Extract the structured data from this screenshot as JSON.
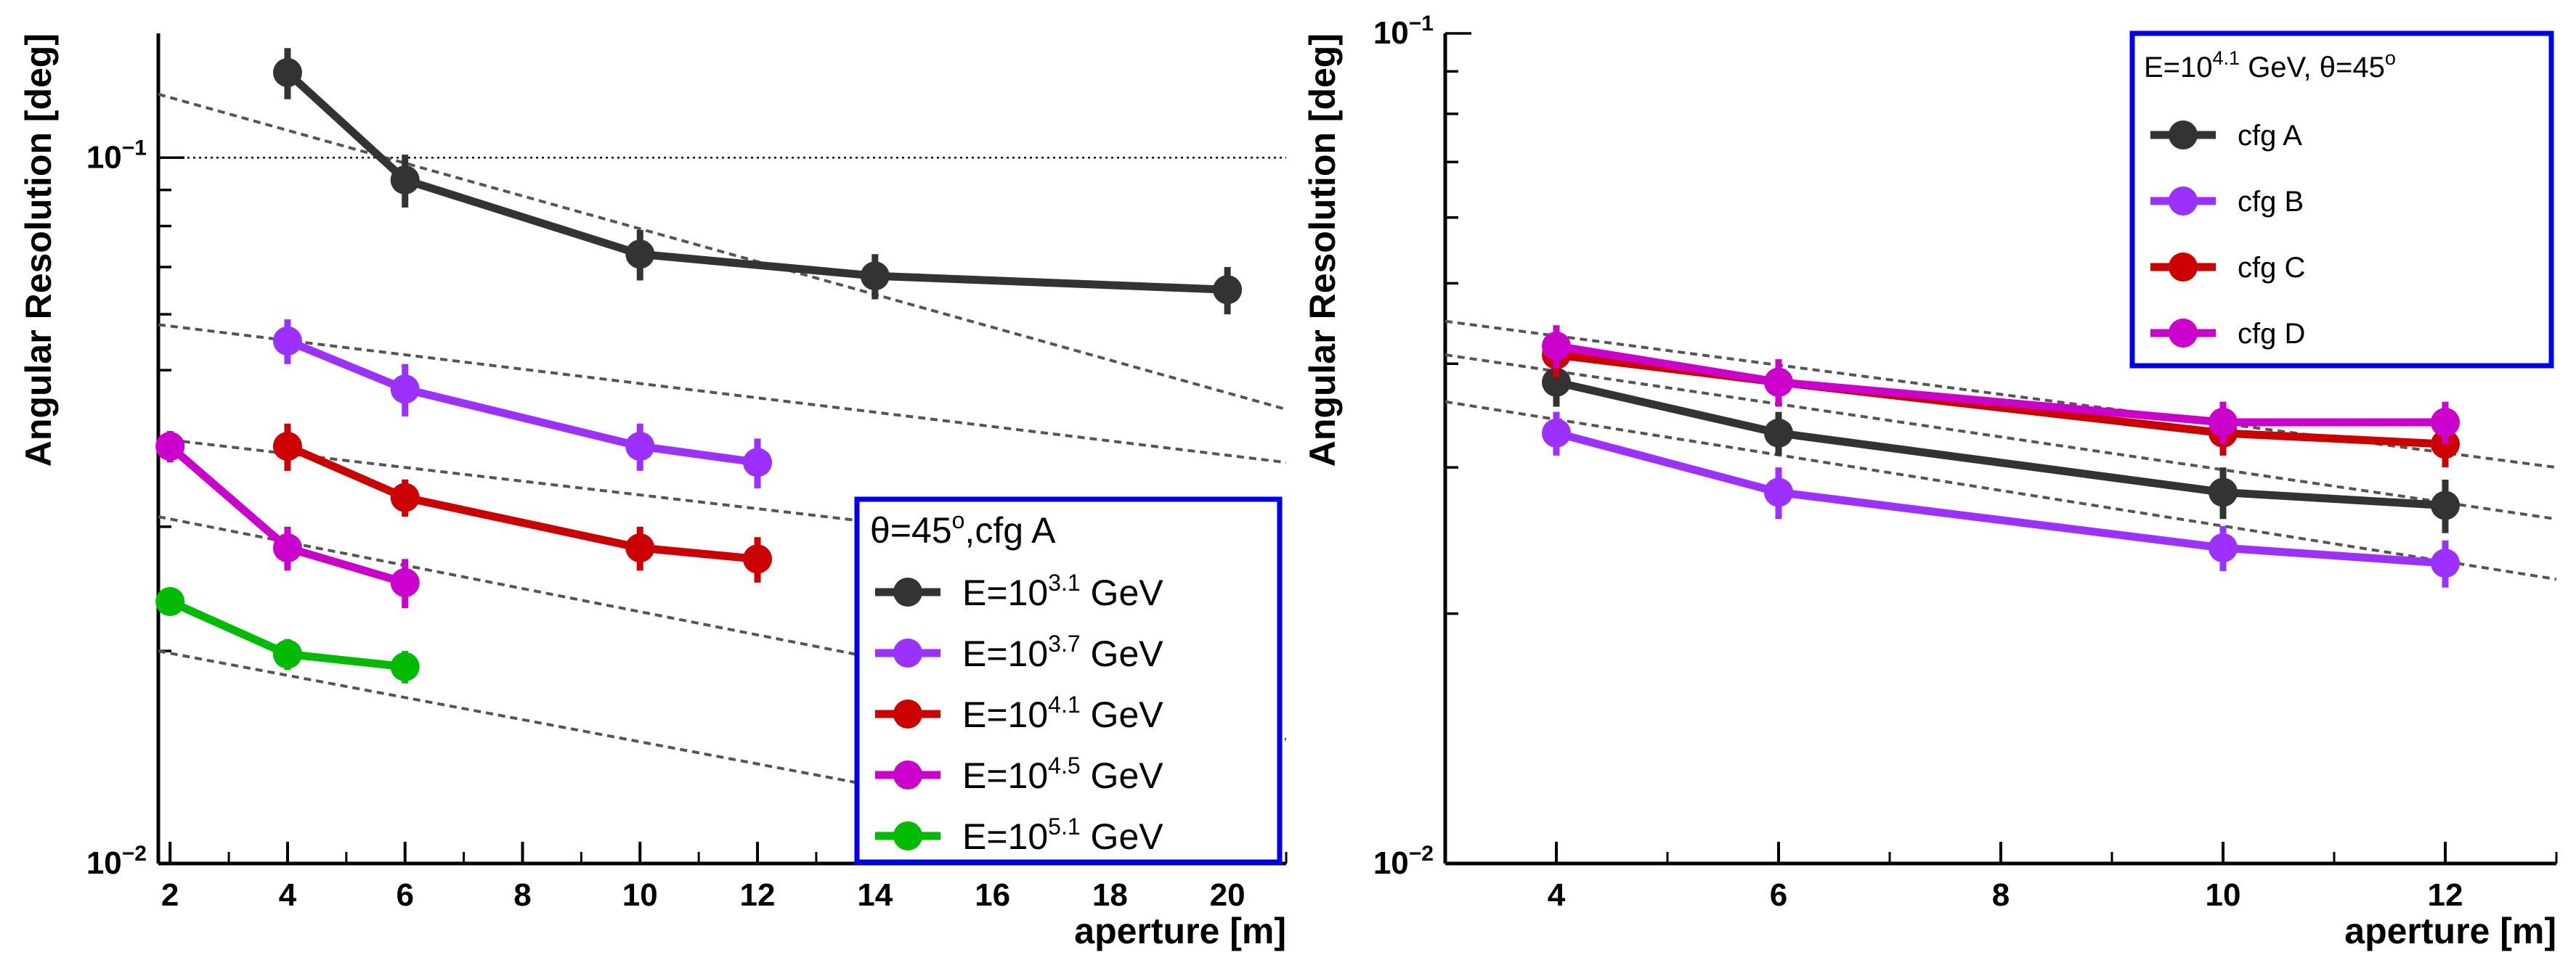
{
  "chart_data": [
    {
      "type": "line",
      "xlabel": "aperture [m]",
      "ylabel": "Angular Resolution [deg]",
      "xlim": [
        1.8,
        21.0
      ],
      "ylim": [
        0.01,
        0.15
      ],
      "yscale": "log",
      "x_ticks": [
        "2",
        "4",
        "6",
        "8",
        "10",
        "12",
        "14",
        "16",
        "18",
        "20"
      ],
      "y_tick_labels": [
        {
          "value": 0.1,
          "base": "10",
          "exp": "−1"
        },
        {
          "value": 0.01,
          "base": "10",
          "exp": "−2"
        }
      ],
      "reference_line": 0.1,
      "legend": {
        "position": "bottom-right",
        "header_prefix": "θ=45",
        "header_sup": "o",
        "header_suffix": ",cfg A"
      },
      "series": [
        {
          "legend_prefix": "E=10",
          "legend_sup": "3.1",
          "legend_suffix": " GeV",
          "color": "#333333",
          "x": [
            4,
            6,
            10,
            14,
            20
          ],
          "y": [
            0.132,
            0.093,
            0.073,
            0.068,
            0.065
          ],
          "err": [
            0.011,
            0.008,
            0.006,
            0.005,
            0.005
          ],
          "fit": [
            0.123,
            0.044
          ]
        },
        {
          "legend_prefix": "E=10",
          "legend_sup": "3.7",
          "legend_suffix": " GeV",
          "color": "#9b30ff",
          "x": [
            4,
            6,
            10,
            12
          ],
          "y": [
            0.055,
            0.047,
            0.039,
            0.037
          ],
          "err": [
            0.004,
            0.004,
            0.003,
            0.003
          ],
          "fit": [
            0.058,
            0.037
          ]
        },
        {
          "legend_prefix": "E=10",
          "legend_sup": "4.1",
          "legend_suffix": " GeV",
          "color": "#cc0000",
          "x": [
            4,
            6,
            10,
            12
          ],
          "y": [
            0.039,
            0.033,
            0.028,
            0.027
          ],
          "err": [
            0.003,
            0.002,
            0.002,
            0.002
          ],
          "fit": [
            0.04,
            0.026
          ]
        },
        {
          "legend_prefix": "E=10",
          "legend_sup": "4.5",
          "legend_suffix": " GeV",
          "color": "#cc00cc",
          "x": [
            2,
            4,
            6
          ],
          "y": [
            0.039,
            0.028,
            0.025
          ],
          "err": [
            0.002,
            0.002,
            0.002
          ],
          "fit": [
            0.031,
            0.015
          ]
        },
        {
          "legend_prefix": "E=10",
          "legend_sup": "5.1",
          "legend_suffix": " GeV",
          "color": "#00bb00",
          "x": [
            2,
            4,
            6
          ],
          "y": [
            0.0235,
            0.0198,
            0.019
          ],
          "err": [
            0.001,
            0.001,
            0.001
          ],
          "fit": [
            0.02,
            0.01
          ]
        }
      ]
    },
    {
      "type": "line",
      "xlabel": "aperture [m]",
      "ylabel": "Angular Resolution [deg]",
      "xlim": [
        3.0,
        13.0
      ],
      "ylim": [
        0.01,
        0.1
      ],
      "yscale": "log",
      "x_ticks": [
        "4",
        "6",
        "8",
        "10",
        "12"
      ],
      "y_tick_labels": [
        {
          "value": 0.1,
          "base": "10",
          "exp": "−1"
        },
        {
          "value": 0.01,
          "base": "10",
          "exp": "−2"
        }
      ],
      "legend": {
        "position": "top-right",
        "header_prefix": "E=10",
        "header_sup": "4.1",
        "header_mid": " GeV, θ=45",
        "header_sup2": "o"
      },
      "series": [
        {
          "name": "cfg A",
          "color": "#333333",
          "x": [
            4,
            6,
            10,
            12
          ],
          "y": [
            0.038,
            0.033,
            0.028,
            0.027
          ],
          "err": [
            0.0025,
            0.002,
            0.002,
            0.002
          ],
          "fit": [
            0.041,
            0.026
          ]
        },
        {
          "name": "cfg B",
          "color": "#9b30ff",
          "x": [
            4,
            6,
            10,
            12
          ],
          "y": [
            0.033,
            0.028,
            0.024,
            0.023
          ],
          "err": [
            0.002,
            0.002,
            0.0015,
            0.0015
          ],
          "fit": [
            0.036,
            0.022
          ]
        },
        {
          "name": "cfg C",
          "color": "#cc0000",
          "x": [
            4,
            6,
            10,
            12
          ],
          "y": [
            0.041,
            0.038,
            0.033,
            0.032
          ],
          "err": [
            0.0025,
            0.0025,
            0.002,
            0.002
          ],
          "fit": [
            0.045,
            0.03
          ]
        },
        {
          "name": "cfg D",
          "color": "#cc00cc",
          "x": [
            4,
            6,
            10,
            12
          ],
          "y": [
            0.042,
            0.038,
            0.034,
            0.034
          ],
          "err": [
            0.0025,
            0.0025,
            0.002,
            0.002
          ],
          "fit": null
        }
      ]
    }
  ]
}
